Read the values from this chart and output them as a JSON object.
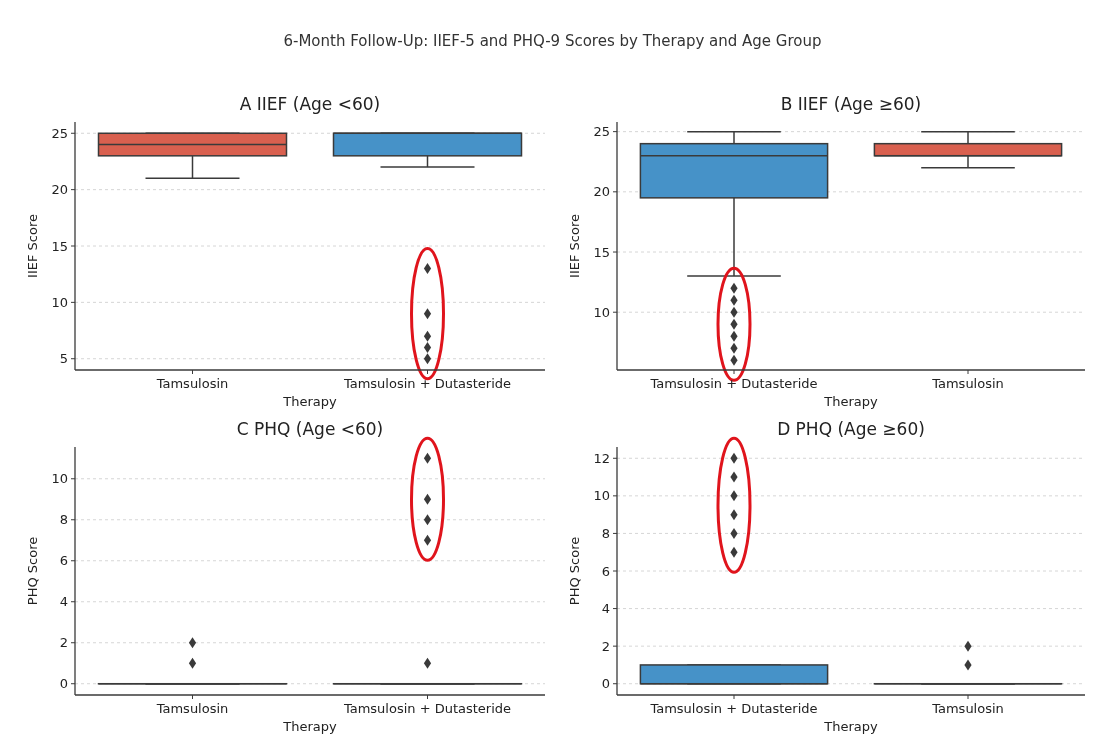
{
  "chart_data": [
    {
      "type": "box",
      "title": "A  IIEF (Age <60)",
      "annotations": [
        "6-Month Follow-Up: IIEF-5 and PHQ-9 Scores by Therapy and Age Group"
      ],
      "xlabel": "Therapy",
      "ylabel": "IIEF Score",
      "categories": [
        "Tamsulosin",
        "Tamsulosin + Dutasteride"
      ],
      "colors": [
        "#d9604f",
        "#4692c8"
      ],
      "marker": "diamond",
      "grid": "y",
      "boxes": [
        {
          "low": 21,
          "q1": 23,
          "median": 24,
          "q3": 25,
          "high": 25
        },
        {
          "low": 22,
          "q1": 23,
          "median": 25,
          "q3": 25,
          "high": 25,
          "outliers": [
            13,
            9,
            7,
            6,
            5
          ]
        }
      ],
      "ylim": [
        4,
        26
      ],
      "yticks": [
        5,
        10,
        15,
        20,
        25
      ]
    },
    {
      "type": "box",
      "title": "B  IIEF (Age ≥60)",
      "xlabel": "Therapy",
      "ylabel": "IIEF Score",
      "categories": [
        "Tamsulosin + Dutasteride",
        "Tamsulosin"
      ],
      "colors": [
        "#4692c8",
        "#d9604f"
      ],
      "marker": "diamond",
      "grid": "y",
      "boxes": [
        {
          "low": 13,
          "q1": 19.5,
          "median": 23,
          "q3": 24,
          "high": 25,
          "outliers": [
            12,
            11,
            10,
            9,
            8,
            7,
            6
          ]
        },
        {
          "low": 22,
          "q1": 23,
          "median": 23,
          "q3": 24,
          "high": 25
        }
      ],
      "ylim": [
        5.2,
        25.8
      ],
      "yticks": [
        10,
        15,
        20,
        25
      ]
    },
    {
      "type": "box",
      "title": "C  PHQ (Age <60)",
      "xlabel": "Therapy",
      "ylabel": "PHQ Score",
      "categories": [
        "Tamsulosin",
        "Tamsulosin + Dutasteride"
      ],
      "colors": [
        "#d9604f",
        "#4692c8"
      ],
      "marker": "diamond",
      "grid": "y",
      "boxes": [
        {
          "low": 0,
          "q1": 0,
          "median": 0,
          "q3": 0,
          "high": 0,
          "outliers": [
            1,
            2
          ]
        },
        {
          "low": 0,
          "q1": 0,
          "median": 0,
          "q3": 0,
          "high": 0,
          "outliers": [
            1,
            7,
            8,
            9,
            11
          ]
        }
      ],
      "ylim": [
        -0.55,
        11.55
      ],
      "yticks": [
        0,
        2,
        4,
        6,
        8,
        10
      ]
    },
    {
      "type": "box",
      "title": "D  PHQ (Age ≥60)",
      "xlabel": "Therapy",
      "ylabel": "PHQ Score",
      "categories": [
        "Tamsulosin + Dutasteride",
        "Tamsulosin"
      ],
      "colors": [
        "#4692c8",
        "#d9604f"
      ],
      "marker": "diamond",
      "grid": "y",
      "boxes": [
        {
          "low": 0,
          "q1": 0,
          "median": 0,
          "q3": 1,
          "high": 1,
          "outliers": [
            7,
            8,
            9,
            10,
            11,
            12
          ]
        },
        {
          "low": 0,
          "q1": 0,
          "median": 0,
          "q3": 0,
          "high": 0,
          "outliers": [
            1,
            2
          ]
        }
      ],
      "ylim": [
        -0.6,
        12.6
      ],
      "yticks": [
        0,
        2,
        4,
        6,
        8,
        10,
        12
      ]
    }
  ]
}
